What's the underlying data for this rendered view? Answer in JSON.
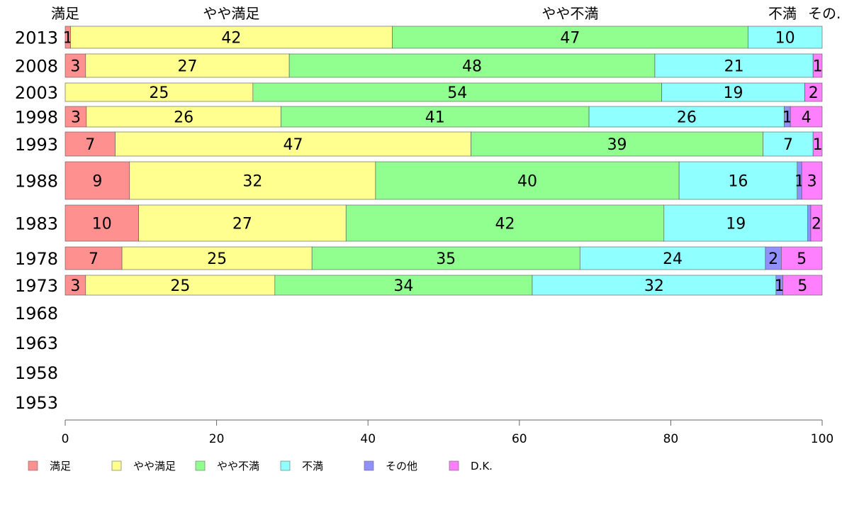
{
  "chart_data": {
    "type": "bar",
    "orientation": "horizontal",
    "stacked": true,
    "top_labels": [
      "満足",
      "やや満足",
      "やや不満",
      "不満",
      "その..."
    ],
    "categories": [
      "2013",
      "2008",
      "2003",
      "1998",
      "1993",
      "1988",
      "1983",
      "1978",
      "1973",
      "1968",
      "1963",
      "1958",
      "1953"
    ],
    "series": [
      {
        "name": "満足",
        "color": "#ff9090",
        "values": [
          0.7,
          2.7,
          0,
          2.8,
          6.6,
          8.5,
          9.7,
          7.5,
          2.7,
          null,
          null,
          null,
          null
        ],
        "labels": [
          "1",
          "3",
          "",
          "3",
          "7",
          "9",
          "10",
          "7",
          "3",
          "",
          "",
          "",
          ""
        ]
      },
      {
        "name": "やや満足",
        "color": "#ffff90",
        "values": [
          42.5,
          26.9,
          24.8,
          25.7,
          47.0,
          32.5,
          27.4,
          25.1,
          25.0,
          null,
          null,
          null,
          null
        ],
        "labels": [
          "42",
          "27",
          "25",
          "26",
          "47",
          "32",
          "27",
          "25",
          "25",
          "",
          "",
          "",
          ""
        ]
      },
      {
        "name": "やや不満",
        "color": "#90ff90",
        "values": [
          47.0,
          48.3,
          54.0,
          40.7,
          38.6,
          40.1,
          42.0,
          35.4,
          34.0,
          null,
          null,
          null,
          null
        ],
        "labels": [
          "47",
          "48",
          "54",
          "41",
          "39",
          "40",
          "42",
          "35",
          "34",
          "",
          "",
          "",
          ""
        ]
      },
      {
        "name": "不満",
        "color": "#90ffff",
        "values": [
          9.8,
          20.9,
          18.9,
          25.8,
          6.6,
          15.6,
          19.0,
          24.5,
          32.2,
          null,
          null,
          null,
          null
        ],
        "labels": [
          "10",
          "21",
          "19",
          "26",
          "7",
          "16",
          "19",
          "24",
          "32",
          "",
          "",
          "",
          ""
        ]
      },
      {
        "name": "その他",
        "color": "#9090ff",
        "values": [
          0,
          0,
          0,
          0.8,
          0,
          0.6,
          0.4,
          2.1,
          0.9,
          null,
          null,
          null,
          null
        ],
        "labels": [
          "",
          "",
          "",
          "1",
          "",
          "1",
          "",
          "2",
          "1",
          "",
          "",
          "",
          ""
        ]
      },
      {
        "name": "D.K.",
        "color": "#ff80ff",
        "values": [
          0,
          1.2,
          2.3,
          4.2,
          1.2,
          2.7,
          1.5,
          5.4,
          5.2,
          null,
          null,
          null,
          null
        ],
        "labels": [
          "",
          "1",
          "2",
          "4",
          "1",
          "3",
          "2",
          "5",
          "5",
          "",
          "",
          "",
          ""
        ]
      }
    ],
    "xlim": [
      0,
      100
    ],
    "xticks": [
      0,
      20,
      40,
      60,
      80,
      100
    ],
    "title": "",
    "xlabel": "",
    "ylabel": "",
    "legend_position": "bottom",
    "grid": false
  }
}
